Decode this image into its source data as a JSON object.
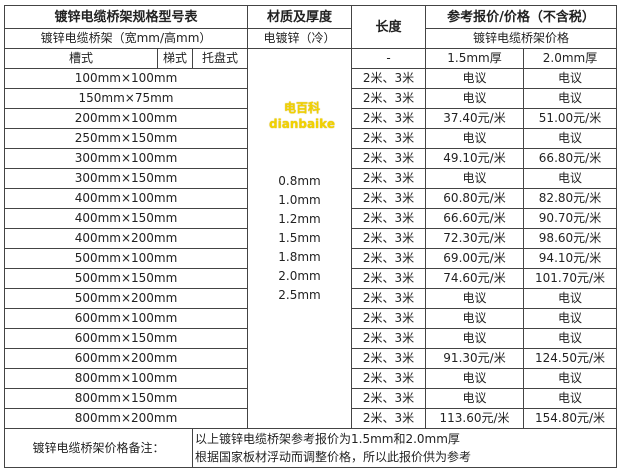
{
  "header": {
    "title": "镀锌电缆桥架规格型号表",
    "material": "材质及厚度",
    "length": "长度",
    "price": "参考报价/价格（不含税）",
    "subtitle": "镀锌电缆桥架（宽mm/高mm）",
    "material_sub": "电镀锌（冷）",
    "price_sub": "镀锌电缆桥架价格",
    "type1": "槽式",
    "type2": "梯式",
    "type3": "托盘式",
    "length_sub": "-",
    "col1": "1.5mm厚",
    "col2": "2.0mm厚"
  },
  "thickness": [
    "0.8mm",
    "1.0mm",
    "1.2mm",
    "1.5mm",
    "1.8mm",
    "2.0mm",
    "2.5mm"
  ],
  "rows": [
    [
      "100mm×100mm",
      "2米、3米",
      "电议",
      "电议"
    ],
    [
      "150mm×75mm",
      "2米、3米",
      "电议",
      "电议"
    ],
    [
      "200mm×100mm",
      "2米、3米",
      "37.40元/米",
      "51.00元/米"
    ],
    [
      "250mm×150mm",
      "2米、3米",
      "电议",
      "电议"
    ],
    [
      "300mm×100mm",
      "2米、3米",
      "49.10元/米",
      "66.80元/米"
    ],
    [
      "300mm×150mm",
      "2米、3米",
      "电议",
      "电议"
    ],
    [
      "400mm×100mm",
      "2米、3米",
      "60.80元/米",
      "82.80元/米"
    ],
    [
      "400mm×150mm",
      "2米、3米",
      "66.60元/米",
      "90.70元/米"
    ],
    [
      "400mm×200mm",
      "2米、3米",
      "72.30元/米",
      "98.60元/米"
    ],
    [
      "500mm×100mm",
      "2米、3米",
      "69.00元/米",
      "94.10元/米"
    ],
    [
      "500mm×150mm",
      "2米、3米",
      "74.60元/米",
      "101.70元/米"
    ],
    [
      "500mm×200mm",
      "2米、3米",
      "电议",
      "电议"
    ],
    [
      "600mm×100mm",
      "2米、3米",
      "电议",
      "电议"
    ],
    [
      "600mm×150mm",
      "2米、3米",
      "电议",
      "电议"
    ],
    [
      "600mm×200mm",
      "2米、3米",
      "91.30元/米",
      "124.50元/米"
    ],
    [
      "800mm×100mm",
      "2米、3米",
      "电议",
      "电议"
    ],
    [
      "800mm×150mm",
      "2米、3米",
      "电议",
      "电议"
    ],
    [
      "800mm×200mm",
      "2米、3米",
      "113.60元/米",
      "154.80元/米"
    ]
  ],
  "note": {
    "label": "镀锌电缆桥架价格备注：",
    "line1": "以上镀锌电缆桥架参考报价为1.5mm和2.0mm厚",
    "line2": "根据国家板材浮动而调整价格，所以此报价供为参考"
  },
  "watermark": "电百科 dianbaike"
}
